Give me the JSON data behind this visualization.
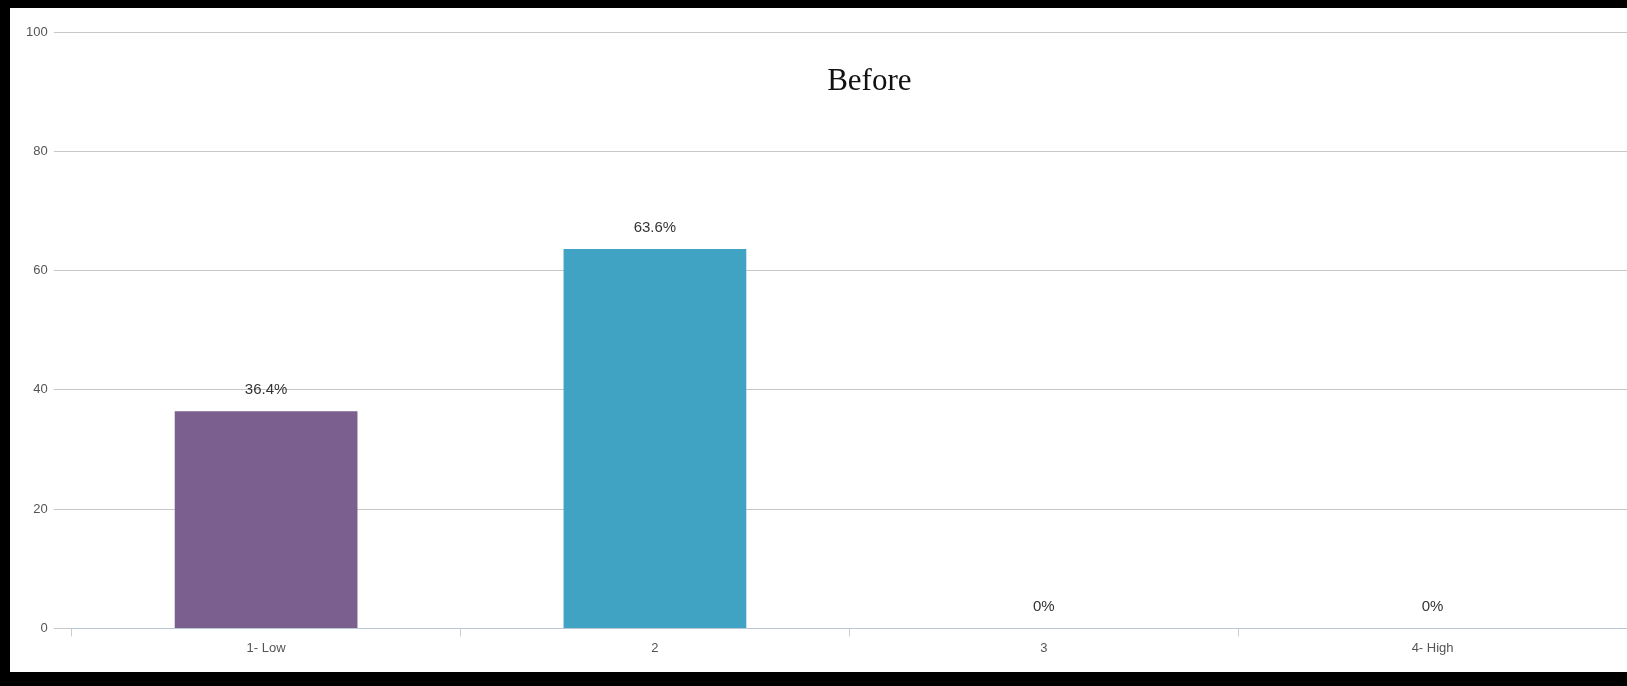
{
  "chart_data": {
    "type": "bar",
    "title": "Before",
    "categories": [
      "1- Low",
      "2",
      "3",
      "4- High"
    ],
    "values": [
      36.4,
      63.6,
      0,
      0
    ],
    "colors": [
      "#7b5f8f",
      "#41a3c3",
      "#41a3c3",
      "#41a3c3"
    ],
    "value_labels": [
      "36.4%",
      "63.6%",
      "0%",
      "0%"
    ],
    "ylim": [
      0,
      100
    ],
    "yticks": [
      0,
      20,
      40,
      60,
      80,
      100
    ],
    "grid": "y",
    "legend": false
  }
}
